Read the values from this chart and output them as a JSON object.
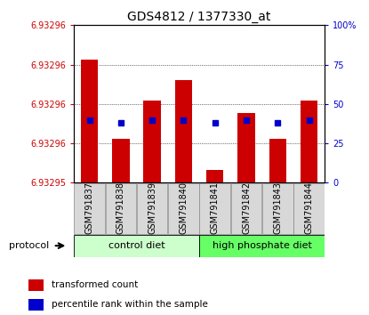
{
  "title": "GDS4812 / 1377330_at",
  "samples": [
    "GSM791837",
    "GSM791838",
    "GSM791839",
    "GSM791840",
    "GSM791841",
    "GSM791842",
    "GSM791843",
    "GSM791844"
  ],
  "ymin": 6.93295,
  "ymax": 6.932965,
  "bar_fracs": [
    0.78,
    0.28,
    0.52,
    0.65,
    0.08,
    0.44,
    0.28,
    0.52
  ],
  "pct_fracs": [
    0.4,
    0.38,
    0.4,
    0.4,
    0.38,
    0.4,
    0.38,
    0.4
  ],
  "ytick_labels": [
    "6.93295",
    "6.93296",
    "6.93296",
    "6.93296",
    "6.93296"
  ],
  "right_ytick_labels": [
    "0",
    "25",
    "50",
    "75",
    "100%"
  ],
  "bar_color": "#cc0000",
  "dot_color": "#0000cc",
  "left_axis_color": "#cc0000",
  "right_axis_color": "#0000cc",
  "group1_label": "control diet",
  "group2_label": "high phosphate diet",
  "group1_color": "#ccffcc",
  "group2_color": "#66ff66",
  "protocol_label": "protocol",
  "legend_red": "transformed count",
  "legend_blue": "percentile rank within the sample",
  "bar_width": 0.55,
  "dot_size": 4.5,
  "xlabel_fontsize": 7,
  "ylabel_fontsize": 7,
  "title_fontsize": 10
}
